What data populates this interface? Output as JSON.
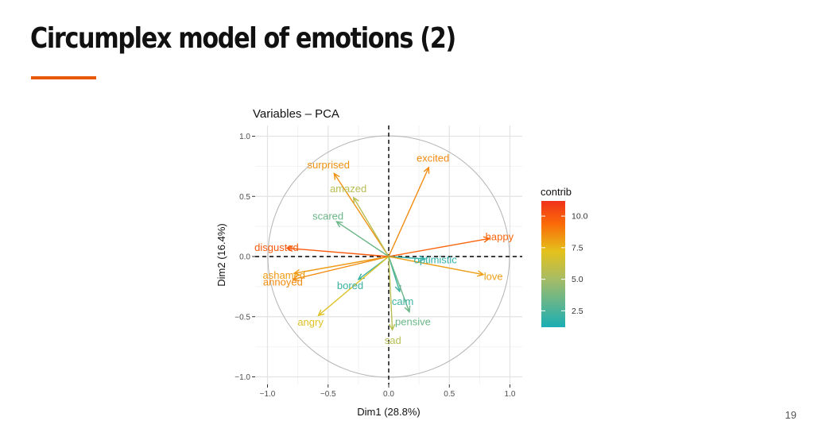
{
  "slide": {
    "title": "Circumplex model of emotions (2)",
    "page_number": "19",
    "accent_color": "#e8590c"
  },
  "chart_data": {
    "type": "scatter",
    "subtype": "pca-variables-correlation-circle",
    "title": "Variables – PCA",
    "xlabel": "Dim1 (28.8%)",
    "ylabel": "Dim2 (16.4%)",
    "xlim": [
      -1.1,
      1.1
    ],
    "ylim": [
      -1.05,
      1.05
    ],
    "xticks": [
      -1.0,
      -0.5,
      0.0,
      0.5,
      1.0
    ],
    "xtick_labels": [
      "−1.0",
      "−0.5",
      "0.0",
      "0.5",
      "1.0"
    ],
    "yticks": [
      -1.0,
      -0.5,
      0.0,
      0.5,
      1.0
    ],
    "yticks_labels": [
      "−1.0",
      "−0.5",
      "0.0",
      "0.5",
      "1.0"
    ],
    "grid": true,
    "unit_circle": true,
    "origin_reference_lines": "dashed",
    "legend": {
      "title": "contrib",
      "placement": "right",
      "ticks": [
        10.0,
        7.5,
        5.0,
        2.5
      ],
      "tick_labels": [
        "10.0",
        "7.5",
        "5.0",
        "2.5"
      ],
      "range": [
        1.2,
        11.2
      ],
      "gradient_colors": [
        "#1aaeb5",
        "#e4c21c",
        "#fa6a07",
        "#f0311c"
      ]
    },
    "variables": [
      {
        "name": "surprised",
        "dim1": -0.45,
        "dim2": 0.69,
        "contrib": 8.4
      },
      {
        "name": "excited",
        "dim1": 0.33,
        "dim2": 0.74,
        "contrib": 8.6
      },
      {
        "name": "amazed",
        "dim1": -0.29,
        "dim2": 0.49,
        "contrib": 5.6
      },
      {
        "name": "scared",
        "dim1": -0.43,
        "dim2": 0.29,
        "contrib": 3.4
      },
      {
        "name": "disgusted",
        "dim1": -0.84,
        "dim2": 0.07,
        "contrib": 9.9
      },
      {
        "name": "happy",
        "dim1": 0.83,
        "dim2": 0.15,
        "contrib": 9.6
      },
      {
        "name": "ashamed",
        "dim1": -0.78,
        "dim2": -0.14,
        "contrib": 8.2
      },
      {
        "name": "annoyed",
        "dim1": -0.79,
        "dim2": -0.19,
        "contrib": 8.6
      },
      {
        "name": "bored",
        "dim1": -0.25,
        "dim2": -0.19,
        "contrib": 2.1
      },
      {
        "name": "optimistic",
        "dim1": 0.3,
        "dim2": -0.02,
        "contrib": 1.8
      },
      {
        "name": "love",
        "dim1": 0.78,
        "dim2": -0.15,
        "contrib": 8.1
      },
      {
        "name": "calm",
        "dim1": 0.09,
        "dim2": -0.29,
        "contrib": 2.2
      },
      {
        "name": "angry",
        "dim1": -0.58,
        "dim2": -0.49,
        "contrib": 7.0
      },
      {
        "name": "pensive",
        "dim1": 0.17,
        "dim2": -0.46,
        "contrib": 3.4
      },
      {
        "name": "sad",
        "dim1": 0.03,
        "dim2": -0.61,
        "contrib": 5.6
      }
    ]
  }
}
